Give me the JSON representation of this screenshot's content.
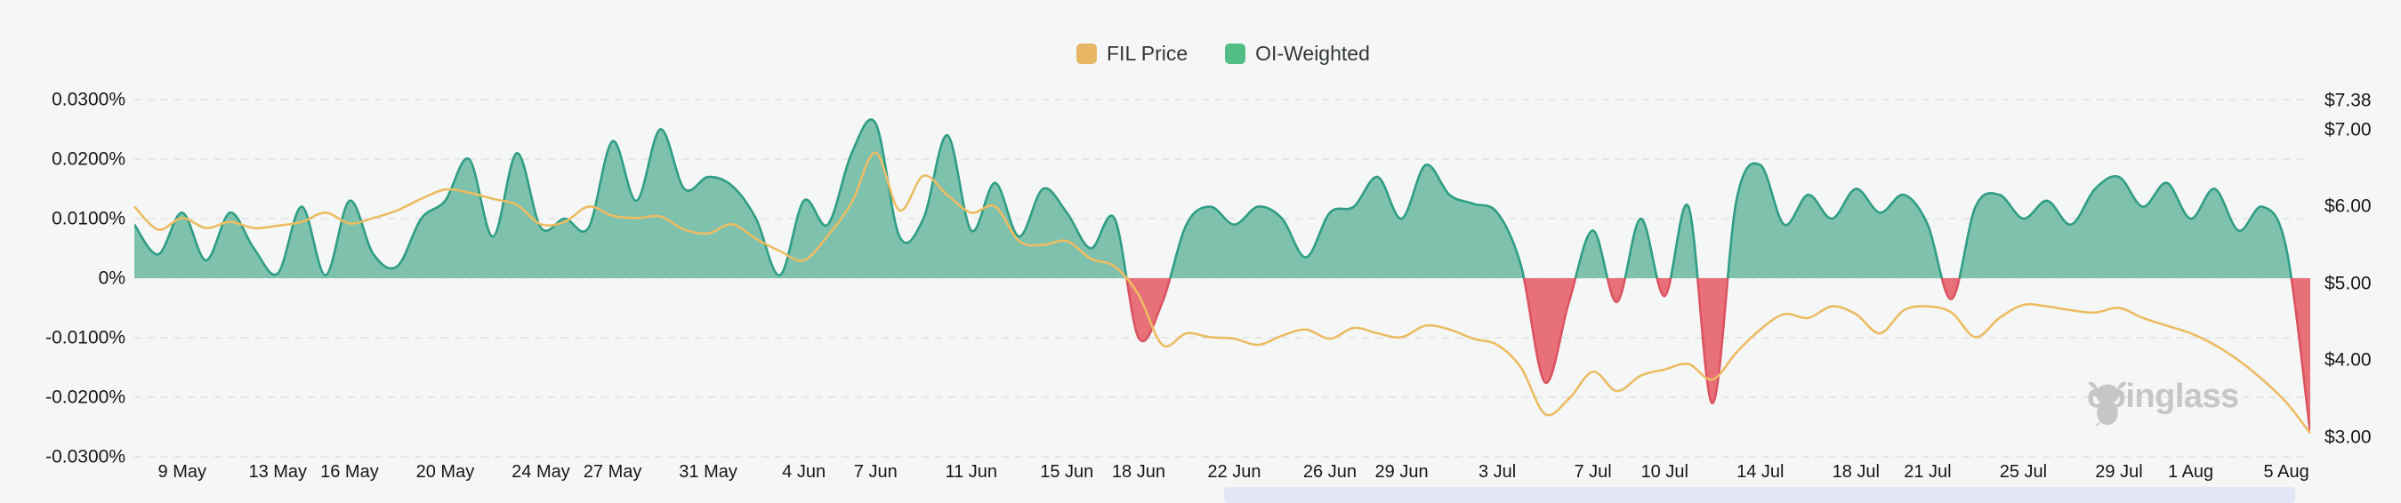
{
  "legend": {
    "items": [
      {
        "label": "FIL Price",
        "color": "#e7b765"
      },
      {
        "label": "OI-Weighted",
        "color": "#52bd85"
      }
    ]
  },
  "watermark": {
    "text": "coinglass"
  },
  "colors": {
    "background": "#f5f6f6",
    "gridline": "#e0e0e0",
    "axis_text": "#161719",
    "price_line": "#ecbc63",
    "funding_positive_fill": "#7ec1ad",
    "funding_positive_line": "#2f9e85",
    "funding_negative_fill": "#e87079",
    "funding_negative_line": "#da5462",
    "scroll_strip": "#e3e6f6",
    "watermark": "#c6c6c8"
  },
  "chart_data": {
    "type": "area",
    "title": "",
    "grid": "dashed-horizontal",
    "legend_position": "top-center",
    "left_axis": {
      "unit": "%",
      "ticks": [
        {
          "label": "0.0300%",
          "value": 0.03
        },
        {
          "label": "0.0200%",
          "value": 0.02
        },
        {
          "label": "0.0100%",
          "value": 0.01
        },
        {
          "label": "0%",
          "value": 0
        },
        {
          "label": "-0.0100%",
          "value": -0.01
        },
        {
          "label": "-0.0200%",
          "value": -0.02
        },
        {
          "label": "-0.0300%",
          "value": -0.03
        }
      ],
      "range": [
        -0.03,
        0.03
      ]
    },
    "right_axis": {
      "unit": "$",
      "ticks": [
        {
          "label": "$7.38",
          "value": 7.38
        },
        {
          "label": "$7.00",
          "value": 7.0
        },
        {
          "label": "$6.00",
          "value": 6.0
        },
        {
          "label": "$5.00",
          "value": 5.0
        },
        {
          "label": "$4.00",
          "value": 4.0
        },
        {
          "label": "$3.00",
          "value": 3.0
        }
      ],
      "range_top": 7.38
    },
    "x_ticks": [
      {
        "label": "9 May",
        "day": 2
      },
      {
        "label": "13 May",
        "day": 6
      },
      {
        "label": "16 May",
        "day": 9
      },
      {
        "label": "20 May",
        "day": 13
      },
      {
        "label": "24 May",
        "day": 17
      },
      {
        "label": "27 May",
        "day": 20
      },
      {
        "label": "31 May",
        "day": 24
      },
      {
        "label": "4 Jun",
        "day": 28
      },
      {
        "label": "7 Jun",
        "day": 31
      },
      {
        "label": "11 Jun",
        "day": 35
      },
      {
        "label": "15 Jun",
        "day": 39
      },
      {
        "label": "18 Jun",
        "day": 42
      },
      {
        "label": "22 Jun",
        "day": 46
      },
      {
        "label": "26 Jun",
        "day": 50
      },
      {
        "label": "29 Jun",
        "day": 53
      },
      {
        "label": "3 Jul",
        "day": 57
      },
      {
        "label": "7 Jul",
        "day": 61
      },
      {
        "label": "10 Jul",
        "day": 64
      },
      {
        "label": "14 Jul",
        "day": 68
      },
      {
        "label": "18 Jul",
        "day": 72
      },
      {
        "label": "21 Jul",
        "day": 75
      },
      {
        "label": "25 Jul",
        "day": 79
      },
      {
        "label": "29 Jul",
        "day": 83
      },
      {
        "label": "1 Aug",
        "day": 86
      },
      {
        "label": "5 Aug",
        "day": 90
      }
    ],
    "series": [
      {
        "name": "OI-Weighted",
        "kind": "area",
        "axis": "left",
        "unit": "%",
        "values": [
          0.009,
          0.004,
          0.011,
          0.003,
          0.011,
          0.005,
          0.0008,
          0.012,
          0.0005,
          0.013,
          0.004,
          0.002,
          0.01,
          0.013,
          0.02,
          0.007,
          0.021,
          0.0085,
          0.01,
          0.0085,
          0.023,
          0.013,
          0.025,
          0.015,
          0.017,
          0.0155,
          0.01,
          0.0005,
          0.013,
          0.009,
          0.021,
          0.026,
          0.007,
          0.01,
          0.024,
          0.008,
          0.016,
          0.007,
          0.015,
          0.011,
          0.005,
          0.01,
          -0.01,
          -0.004,
          0.009,
          0.012,
          0.009,
          0.012,
          0.01,
          0.0035,
          0.011,
          0.012,
          0.017,
          0.01,
          0.019,
          0.014,
          0.0125,
          0.011,
          0.002,
          -0.0175,
          -0.004,
          0.008,
          -0.004,
          0.01,
          -0.003,
          0.012,
          -0.021,
          0.013,
          0.019,
          0.009,
          0.014,
          0.01,
          0.015,
          0.011,
          0.014,
          0.009,
          -0.0035,
          0.012,
          0.014,
          0.01,
          0.013,
          0.009,
          0.015,
          0.017,
          0.012,
          0.016,
          0.01,
          0.015,
          0.008,
          0.012,
          0.005,
          -0.026
        ]
      },
      {
        "name": "FIL Price",
        "kind": "line",
        "axis": "right",
        "unit": "$",
        "values": [
          6.0,
          5.7,
          5.85,
          5.72,
          5.8,
          5.72,
          5.75,
          5.8,
          5.92,
          5.78,
          5.85,
          5.95,
          6.1,
          6.22,
          6.18,
          6.1,
          6.02,
          5.77,
          5.8,
          6.0,
          5.88,
          5.85,
          5.87,
          5.7,
          5.65,
          5.77,
          5.58,
          5.42,
          5.3,
          5.62,
          6.05,
          6.7,
          5.95,
          6.4,
          6.15,
          5.92,
          6.0,
          5.55,
          5.5,
          5.55,
          5.32,
          5.22,
          4.85,
          4.2,
          4.35,
          4.3,
          4.28,
          4.2,
          4.32,
          4.4,
          4.28,
          4.42,
          4.35,
          4.3,
          4.45,
          4.4,
          4.28,
          4.2,
          3.9,
          3.3,
          3.5,
          3.85,
          3.6,
          3.8,
          3.88,
          3.95,
          3.75,
          4.1,
          4.4,
          4.6,
          4.55,
          4.7,
          4.6,
          4.35,
          4.65,
          4.7,
          4.62,
          4.3,
          4.55,
          4.72,
          4.7,
          4.65,
          4.62,
          4.68,
          4.55,
          4.45,
          4.35,
          4.2,
          4.0,
          3.75,
          3.45,
          3.05
        ]
      }
    ]
  }
}
